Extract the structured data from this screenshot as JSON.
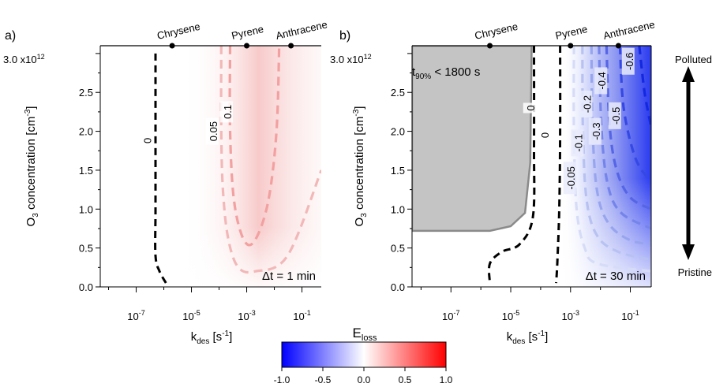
{
  "panels": [
    {
      "label": "a)",
      "ylabel_main": "O",
      "ylabel_sub": "3",
      "ylabel_rest": " concentration [cm",
      "ylabel_sup": "-3",
      "ylabel_end": "]",
      "y_exponent_label": "3.0 x10",
      "y_exponent_sup": "12",
      "xlabel_main": "k",
      "xlabel_sub": "des",
      "xlabel_rest": " [s",
      "xlabel_sup": "-1",
      "xlabel_end": "]",
      "annotation": "Δt = 1 min",
      "contour_labels": [
        "0",
        "0.05",
        "0.1"
      ]
    },
    {
      "label": "b)",
      "ylabel_main": "O",
      "ylabel_sub": "3",
      "ylabel_rest": " concentration [cm",
      "ylabel_sup": "-3",
      "ylabel_end": "]",
      "y_exponent_label": "3.0 x10",
      "y_exponent_sup": "12",
      "xlabel_main": "k",
      "xlabel_sub": "des",
      "xlabel_rest": " [s",
      "xlabel_sup": "-1",
      "xlabel_end": "]",
      "annotation": "Δt = 30 min",
      "contour_labels": [
        "0",
        "0",
        "-0.05",
        "-0.1",
        "-0.2",
        "-0.3",
        "-0.4",
        "-0.5",
        "-0.6"
      ],
      "shaded_label_main": "t",
      "shaded_label_sub": "90%",
      "shaded_label_rest": " < 1800 s"
    }
  ],
  "compounds": [
    {
      "name": "Chrysene",
      "kdes": 2e-06
    },
    {
      "name": "Pyrene",
      "kdes": 0.001
    },
    {
      "name": "Anthracene",
      "kdes": 0.04
    }
  ],
  "arrow": {
    "top_label": "Polluted",
    "bottom_label": "Pristine"
  },
  "colorbar": {
    "title_main": "E",
    "title_sub": "loss",
    "ticks": [
      "-1.0",
      "-0.5",
      "0.0",
      "0.5",
      "1.0"
    ],
    "colors": {
      "min": "#0000ff",
      "mid": "#ffffff",
      "max": "#ff0000"
    }
  },
  "chart_data": [
    {
      "type": "heatmap",
      "title": "a)",
      "xlabel": "kdes [s-1]",
      "ylabel": "O3 concentration [cm-3]",
      "x_scale": "log",
      "x_ticks": [
        "10-7",
        "10-5",
        "10-3",
        "10-1"
      ],
      "x_tick_values": [
        1e-07,
        1e-05,
        0.001,
        0.1
      ],
      "xlim": [
        5e-09,
        0.5
      ],
      "y_ticks": [
        "0.0",
        "0.5",
        "1.0",
        "1.5",
        "2.0",
        "2.5",
        "3.0 x10^12"
      ],
      "y_tick_values": [
        0,
        0.5,
        1.0,
        1.5,
        2.0,
        2.5,
        3.0
      ],
      "ylim": [
        0,
        3.1
      ],
      "z_label": "Eloss",
      "zlim": [
        -1,
        1
      ],
      "contours": [
        {
          "level": 0,
          "style": "dashed",
          "color": "#000000",
          "points": [
            [
              5e-07,
              3.0
            ],
            [
              5e-07,
              2.0
            ],
            [
              5e-07,
              1.0
            ],
            [
              5e-07,
              0.4
            ],
            [
              7e-07,
              0.2
            ],
            [
              1.2e-06,
              0.05
            ]
          ]
        },
        {
          "level": 0.05,
          "style": "dashed",
          "color": "#f2b8b8",
          "points": [
            [
              0.00012,
              3.1
            ],
            [
              0.00012,
              2.0
            ],
            [
              0.00014,
              1.2
            ],
            [
              0.00022,
              0.6
            ],
            [
              0.0005,
              0.25
            ],
            [
              0.002,
              0.2
            ],
            [
              0.03,
              0.4
            ],
            [
              0.5,
              1.5
            ]
          ]
        },
        {
          "level": 0.1,
          "style": "dashed",
          "color": "#f2a0a0",
          "points": [
            [
              0.00025,
              3.1
            ],
            [
              0.00025,
              2.0
            ],
            [
              0.00035,
              1.1
            ],
            [
              0.0008,
              0.6
            ],
            [
              0.002,
              0.6
            ],
            [
              0.006,
              1.1
            ],
            [
              0.012,
              2.0
            ],
            [
              0.015,
              3.1
            ]
          ]
        }
      ]
    },
    {
      "type": "heatmap",
      "title": "b)",
      "xlabel": "kdes [s-1]",
      "ylabel": "O3 concentration [cm-3]",
      "x_scale": "log",
      "x_ticks": [
        "10-7",
        "10-5",
        "10-3",
        "10-1"
      ],
      "x_tick_values": [
        1e-07,
        1e-05,
        0.001,
        0.1
      ],
      "xlim": [
        5e-09,
        0.5
      ],
      "y_ticks": [
        "0.0",
        "0.5",
        "1.0",
        "1.5",
        "2.0",
        "2.5",
        "3.0 x10^12"
      ],
      "y_tick_values": [
        0,
        0.5,
        1.0,
        1.5,
        2.0,
        2.5,
        3.0
      ],
      "ylim": [
        0,
        3.1
      ],
      "z_label": "Eloss",
      "zlim": [
        -1,
        1
      ],
      "shaded_region": {
        "label": "t90% < 1800 s",
        "color": "#c4c4c4",
        "boundary": [
          [
            5e-09,
            0.72
          ],
          [
            2e-06,
            0.72
          ],
          [
            1e-05,
            0.78
          ],
          [
            3e-05,
            0.95
          ],
          [
            4.5e-05,
            1.6
          ],
          [
            5e-05,
            3.1
          ],
          [
            5e-09,
            3.1
          ]
        ]
      },
      "contours": [
        {
          "level": 0,
          "style": "dashed",
          "color": "#000000",
          "points": [
            [
              6e-05,
              3.1
            ],
            [
              6e-05,
              1.8
            ],
            [
              5.5e-05,
              0.9
            ],
            [
              2e-05,
              0.55
            ],
            [
              5e-06,
              0.45
            ],
            [
              2e-06,
              0.3
            ],
            [
              2e-06,
              0.05
            ]
          ]
        },
        {
          "level": 0,
          "style": "dashed",
          "color": "#000000",
          "points": [
            [
              0.00045,
              3.1
            ],
            [
              0.00045,
              2.0
            ],
            [
              0.00042,
              1.0
            ],
            [
              0.00036,
              0.3
            ],
            [
              0.00033,
              0.05
            ]
          ]
        },
        {
          "level": -0.05,
          "style": "dashed",
          "color": "#d6dcf7",
          "points": [
            [
              0.0013,
              3.1
            ],
            [
              0.0013,
              2.0
            ],
            [
              0.0016,
              1.0
            ],
            [
              0.003,
              0.5
            ],
            [
              0.008,
              0.3
            ],
            [
              0.5,
              0.2
            ]
          ]
        },
        {
          "level": -0.1,
          "style": "dashed",
          "color": "#b8c2f2",
          "points": [
            [
              0.0025,
              3.1
            ],
            [
              0.0026,
              2.0
            ],
            [
              0.0035,
              1.1
            ],
            [
              0.008,
              0.65
            ],
            [
              0.04,
              0.45
            ],
            [
              0.5,
              0.35
            ]
          ]
        },
        {
          "level": -0.2,
          "style": "dashed",
          "color": "#97a5ee",
          "points": [
            [
              0.005,
              3.1
            ],
            [
              0.0055,
              2.0
            ],
            [
              0.008,
              1.2
            ],
            [
              0.02,
              0.8
            ],
            [
              0.1,
              0.6
            ],
            [
              0.5,
              0.55
            ]
          ]
        },
        {
          "level": -0.3,
          "style": "dashed",
          "color": "#7584ea",
          "points": [
            [
              0.009,
              3.1
            ],
            [
              0.011,
              2.0
            ],
            [
              0.018,
              1.3
            ],
            [
              0.05,
              0.95
            ],
            [
              0.5,
              0.75
            ]
          ]
        },
        {
          "level": -0.4,
          "style": "dashed",
          "color": "#5565e6",
          "points": [
            [
              0.016,
              3.1
            ],
            [
              0.02,
              2.1
            ],
            [
              0.035,
              1.5
            ],
            [
              0.1,
              1.15
            ],
            [
              0.5,
              1.0
            ]
          ]
        },
        {
          "level": -0.5,
          "style": "dashed",
          "color": "#3548e3",
          "points": [
            [
              0.045,
              3.1
            ],
            [
              0.06,
              2.3
            ],
            [
              0.15,
              1.65
            ],
            [
              0.5,
              1.35
            ]
          ]
        },
        {
          "level": -0.6,
          "style": "dashed",
          "color": "#1428e0",
          "points": [
            [
              0.2,
              3.1
            ],
            [
              0.3,
              2.5
            ],
            [
              0.5,
              2.05
            ]
          ]
        }
      ]
    }
  ]
}
